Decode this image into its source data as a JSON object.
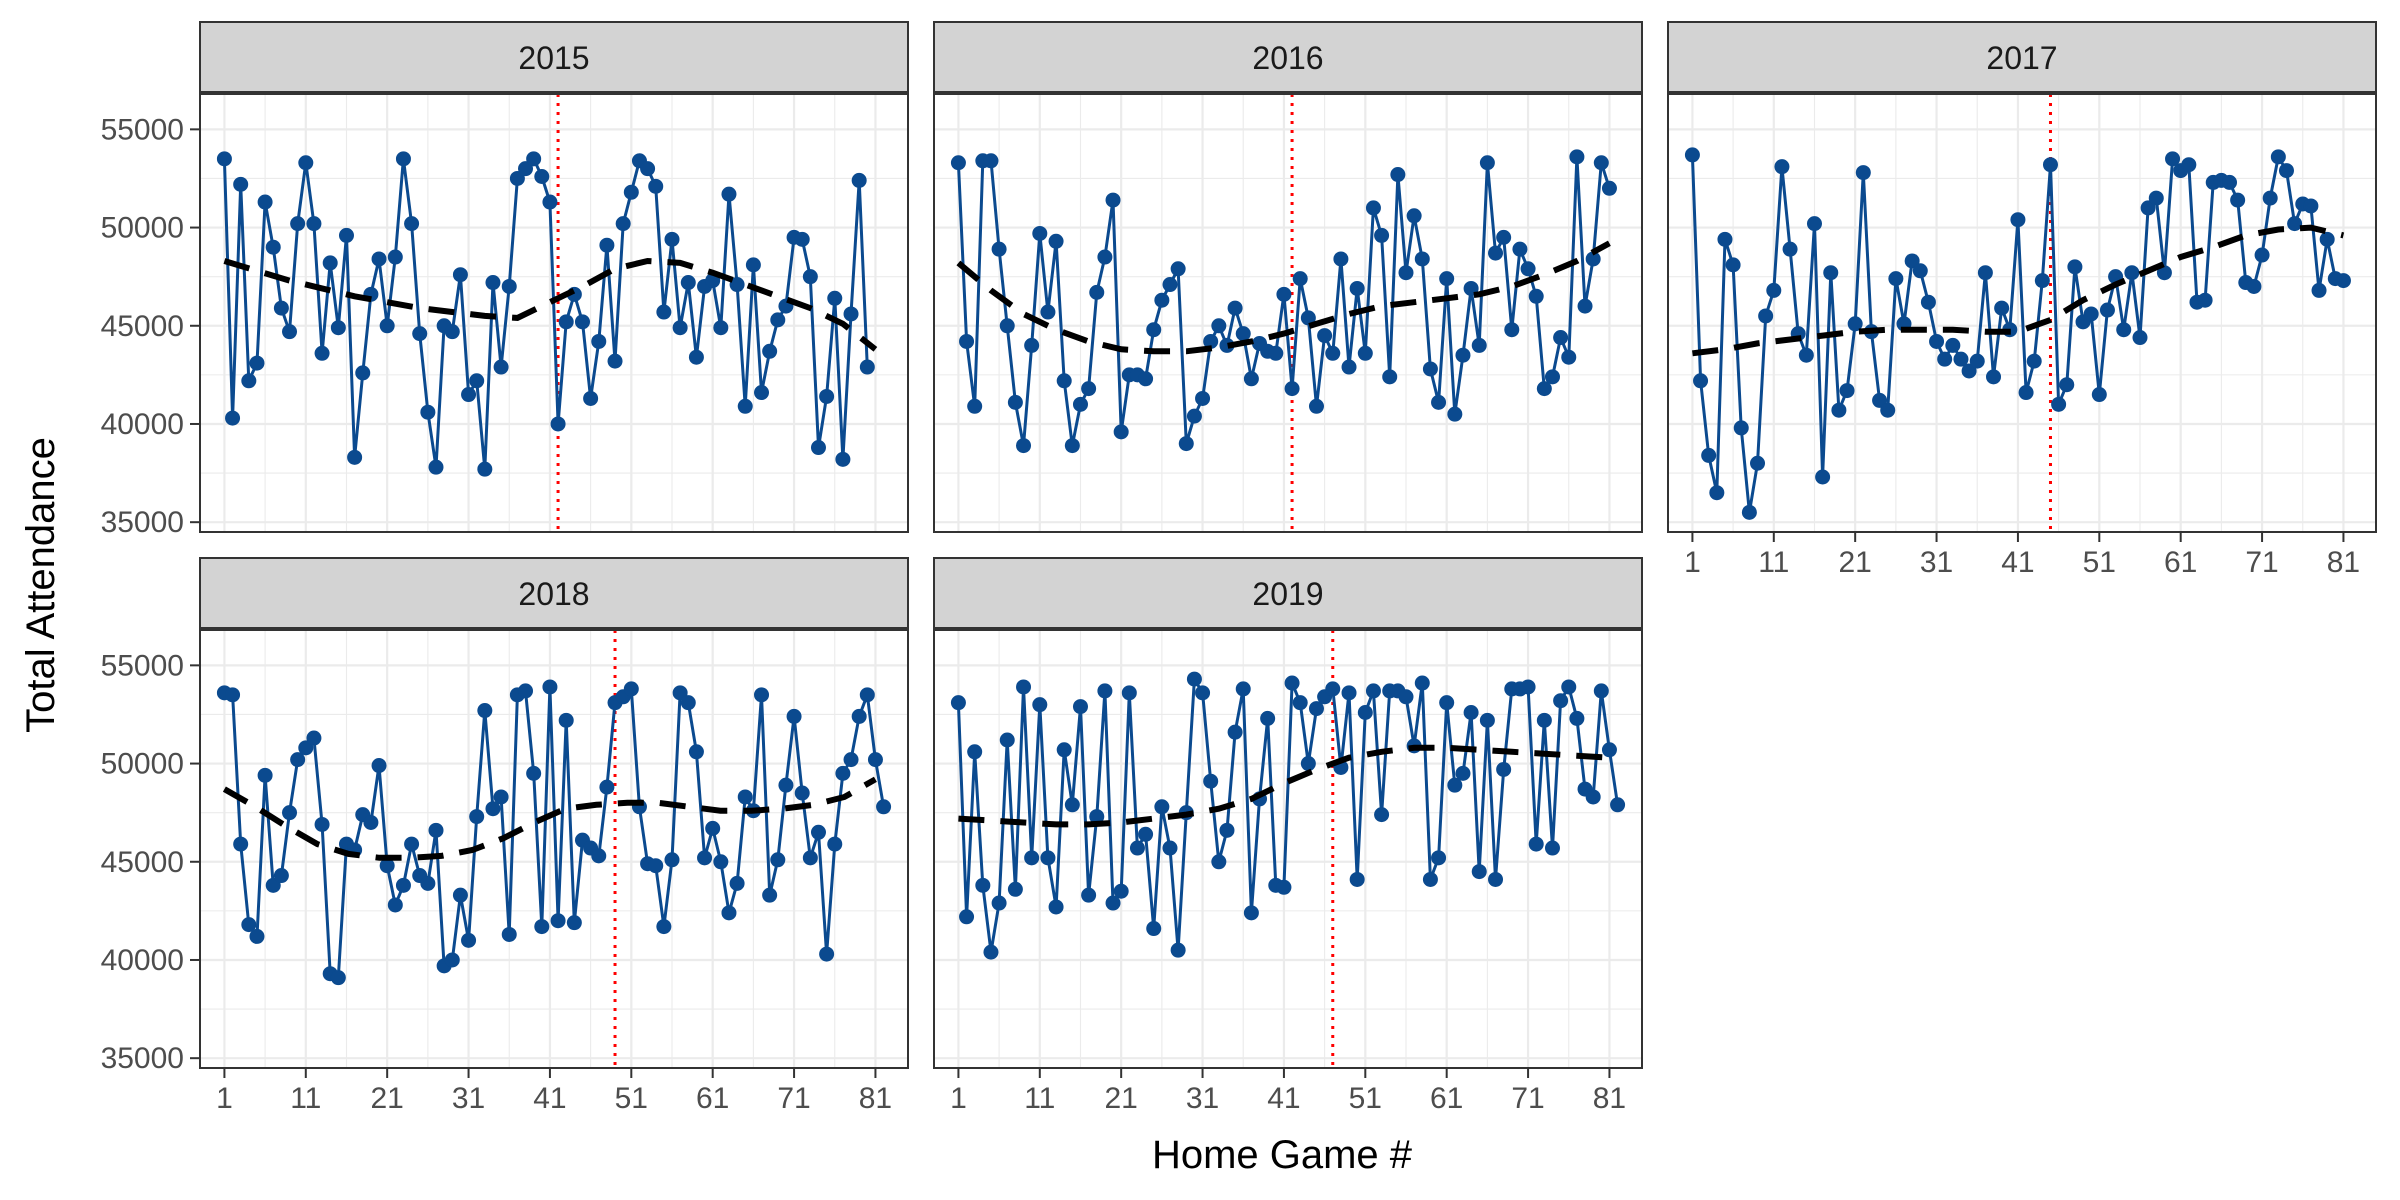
{
  "chart_data": {
    "type": "line",
    "xlabel": "Home Game #",
    "ylabel": "Total Attendance",
    "x_ticks": [
      1,
      11,
      21,
      31,
      41,
      51,
      61,
      71,
      81
    ],
    "y_ticks": [
      35000,
      40000,
      45000,
      50000,
      55000
    ],
    "xlim": [
      -2,
      85
    ],
    "ylim": [
      34500,
      56800
    ],
    "grid": true,
    "colors": {
      "points": "#0b4a8f",
      "trend": "#000000",
      "vline": "#ff0000",
      "strip": "#d3d3d3",
      "grid": "#ebebeb"
    },
    "panels": [
      {
        "label": "2015",
        "vline_x": 42,
        "values": [
          53500,
          40300,
          52200,
          42200,
          43100,
          51300,
          49000,
          45900,
          44700,
          50200,
          53300,
          50200,
          43600,
          48200,
          44900,
          49600,
          38300,
          42600,
          46600,
          48400,
          45000,
          48500,
          53500,
          50200,
          44600,
          40600,
          37800,
          45000,
          44700,
          47600,
          41500,
          42200,
          37700,
          47200,
          42900,
          47000,
          52500,
          53000,
          53500,
          52600,
          51300,
          40000,
          45200,
          46600,
          45200,
          41300,
          44200,
          49100,
          43200,
          50200,
          51800,
          53400,
          53000,
          52100,
          45700,
          49400,
          44900,
          47200,
          43400,
          47000,
          47300,
          44900,
          51700,
          47100,
          40900,
          48100,
          41600,
          43700,
          45300,
          46000,
          49500,
          49400,
          47500,
          38800,
          41400,
          46400,
          38200,
          45600,
          52400,
          42900
        ],
        "trend": [
          48300,
          47800,
          47300,
          46900,
          46500,
          46200,
          45900,
          45700,
          45500,
          45400,
          46200,
          47000,
          47900,
          48300,
          48200,
          47700,
          47100,
          46500,
          45900,
          45100,
          43800
        ]
      },
      {
        "label": "2016",
        "vline_x": 42,
        "values": [
          53300,
          44200,
          40900,
          53400,
          53400,
          48900,
          45000,
          41100,
          38900,
          44000,
          49700,
          45700,
          49300,
          42200,
          38900,
          41000,
          41800,
          46700,
          48500,
          51400,
          39600,
          42500,
          42500,
          42300,
          44800,
          46300,
          47100,
          47900,
          39000,
          40400,
          41300,
          44200,
          45000,
          44000,
          45900,
          44600,
          42300,
          44100,
          43700,
          43600,
          46600,
          41800,
          47400,
          45400,
          40900,
          44500,
          43600,
          48400,
          42900,
          46900,
          43600,
          51000,
          49600,
          42400,
          52700,
          47700,
          50600,
          48400,
          42800,
          41100,
          47400,
          40500,
          43500,
          46900,
          44000,
          53300,
          48700,
          49500,
          44800,
          48900,
          47900,
          46500,
          41800,
          42400,
          44400,
          43400,
          53600,
          46000,
          48400,
          53300,
          52000
        ],
        "trend": [
          48200,
          46800,
          45600,
          44800,
          44200,
          43800,
          43700,
          43700,
          43900,
          44200,
          44600,
          45100,
          45600,
          46000,
          46200,
          46400,
          46600,
          47000,
          47600,
          48300,
          49200
        ]
      },
      {
        "label": "2017",
        "vline_x": 45,
        "values": [
          53700,
          42200,
          38400,
          36500,
          49400,
          48100,
          39800,
          35500,
          38000,
          45500,
          46800,
          53100,
          48900,
          44600,
          43500,
          50200,
          37300,
          47700,
          40700,
          41700,
          45100,
          52800,
          44700,
          41200,
          40700,
          47400,
          45100,
          48300,
          47800,
          46200,
          44200,
          43300,
          44000,
          43300,
          42700,
          43200,
          47700,
          42400,
          45900,
          44800,
          50400,
          41600,
          43200,
          47300,
          53200,
          41000,
          42000,
          48000,
          45200,
          45600,
          41500,
          45800,
          47500,
          44800,
          47700,
          44400,
          51000,
          51500,
          47700,
          53500,
          52900,
          53200,
          46200,
          46300,
          52300,
          52400,
          52300,
          51400,
          47200,
          47000,
          48600,
          51500,
          53600,
          52900,
          50200,
          51200,
          51100,
          46800,
          49400,
          47400,
          47300
        ],
        "trend": [
          43600,
          43800,
          44100,
          44300,
          44500,
          44700,
          44800,
          44800,
          44800,
          44700,
          44700,
          45300,
          46300,
          47100,
          47800,
          48500,
          49000,
          49600,
          49900,
          50000,
          49600
        ]
      },
      {
        "label": "2018",
        "vline_x": 49,
        "values": [
          53600,
          53500,
          45900,
          41800,
          41200,
          49400,
          43800,
          44300,
          47500,
          50200,
          50800,
          51300,
          46900,
          39300,
          39100,
          45900,
          45600,
          47400,
          47000,
          49900,
          44800,
          42800,
          43800,
          45900,
          44300,
          43900,
          46600,
          39700,
          40000,
          43300,
          41000,
          47300,
          52700,
          47700,
          48300,
          41300,
          53500,
          53700,
          49500,
          41700,
          53900,
          42000,
          52200,
          41900,
          46100,
          45700,
          45300,
          48800,
          53100,
          53400,
          53800,
          47800,
          44900,
          44800,
          41700,
          45100,
          53600,
          53100,
          50600,
          45200,
          46700,
          45000,
          42400,
          43900,
          48300,
          47600,
          53500,
          43300,
          45100,
          48900,
          52400,
          48500,
          45200,
          46500,
          40300,
          45900,
          49500,
          50200,
          52400,
          53500,
          50200,
          47800
        ],
        "trend": [
          48700,
          47800,
          46800,
          45900,
          45400,
          45200,
          45200,
          45300,
          45600,
          46200,
          47000,
          47700,
          47900,
          48000,
          48000,
          47800,
          47600,
          47600,
          47700,
          47900,
          48300,
          49200
        ]
      },
      {
        "label": "2019",
        "vline_x": 47,
        "values": [
          53100,
          42200,
          50600,
          43800,
          40400,
          42900,
          51200,
          43600,
          53900,
          45200,
          53000,
          45200,
          42700,
          50700,
          47900,
          52900,
          43300,
          47300,
          53700,
          42900,
          43500,
          53600,
          45700,
          46400,
          41600,
          47800,
          45700,
          40500,
          47500,
          54300,
          53600,
          49100,
          45000,
          46600,
          51600,
          53800,
          42400,
          48200,
          52300,
          43800,
          43700,
          54100,
          53100,
          50000,
          52800,
          53400,
          53800,
          49800,
          53600,
          44100,
          52600,
          53700,
          47400,
          53700,
          53700,
          53400,
          50900,
          54100,
          44100,
          45200,
          53100,
          48900,
          49500,
          52600,
          44500,
          52200,
          44100,
          49700,
          53800,
          53800,
          53900,
          45900,
          52200,
          45700,
          53200,
          53900,
          52300,
          48700,
          48300,
          53700,
          50700,
          47900
        ],
        "trend": [
          47200,
          47100,
          47000,
          46900,
          46900,
          47000,
          47200,
          47400,
          47700,
          48200,
          49000,
          49700,
          50300,
          50600,
          50800,
          50800,
          50700,
          50600,
          50500,
          50400,
          50300
        ]
      }
    ]
  }
}
